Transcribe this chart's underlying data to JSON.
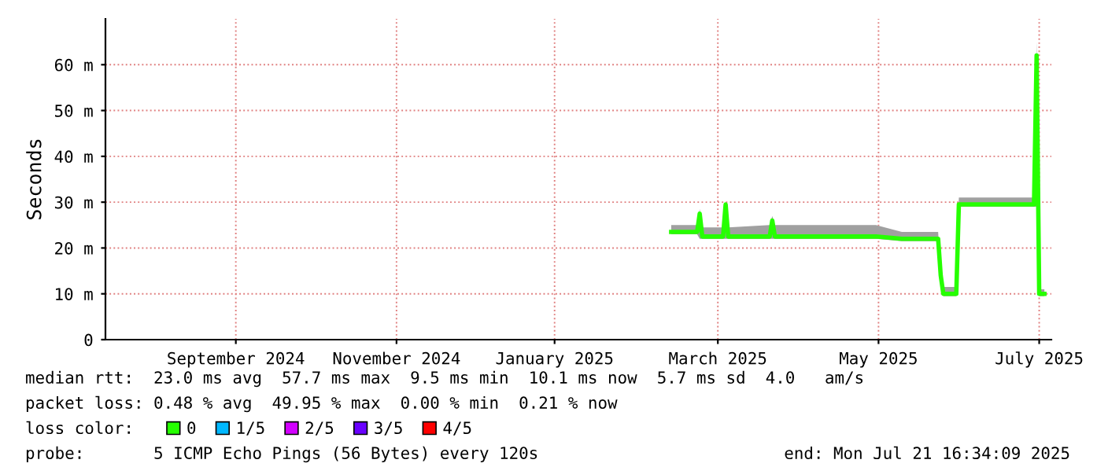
{
  "chart_data": {
    "type": "line",
    "ylabel": "Seconds",
    "legend_title": "loss color:",
    "legend": "bottom",
    "grid": true,
    "marker": "none",
    "line_style": "solid",
    "xlim": [
      "2024-07-21T16:34",
      "2025-07-21T16:34"
    ],
    "xticks": [
      {
        "value": "2024-09-10",
        "label": "September 2024"
      },
      {
        "value": "2024-11-11",
        "label": "November 2024"
      },
      {
        "value": "2025-01-11",
        "label": "January 2025"
      },
      {
        "value": "2025-03-15",
        "label": "March 2025"
      },
      {
        "value": "2025-05-16",
        "label": "May 2025"
      },
      {
        "value": "2025-07-17",
        "label": "July 2025"
      }
    ],
    "ylim": [
      0,
      70
    ],
    "yticks": [
      0,
      {
        "value": 10,
        "label": "10 m"
      },
      {
        "value": 20,
        "label": "20 m"
      },
      {
        "value": 30,
        "label": "30 m"
      },
      {
        "value": 40,
        "label": "40 m"
      },
      {
        "value": 50,
        "label": "50 m"
      },
      {
        "value": 60,
        "label": "60 m"
      }
    ],
    "series": [
      {
        "name": "0",
        "color": "#26ff00",
        "x": [
          "2025-02-25",
          "2025-03-07",
          "2025-03-08",
          "2025-03-09",
          "2025-03-17",
          "2025-03-18",
          "2025-03-19",
          "2025-04-04",
          "2025-04-05",
          "2025-04-06",
          "2025-05-15",
          "2025-05-25",
          "2025-06-08",
          "2025-06-09",
          "2025-06-10",
          "2025-06-15",
          "2025-06-16",
          "2025-07-15",
          "2025-07-16",
          "2025-07-17",
          "2025-07-19"
        ],
        "values": [
          23.5,
          23.5,
          27.5,
          22.5,
          22.5,
          29.5,
          22.5,
          22.5,
          26,
          22.5,
          22.5,
          22,
          22,
          14,
          10,
          10,
          29.5,
          29.5,
          62,
          10,
          10
        ],
        "lower": [
          23,
          23,
          22,
          22,
          22,
          22,
          22,
          22,
          22,
          22,
          22,
          21.5,
          21.5,
          13,
          9.5,
          9.5,
          29,
          29,
          29,
          9.5,
          9.5
        ],
        "upper": [
          25,
          25,
          28.5,
          24.5,
          24.5,
          30,
          24.5,
          25,
          27,
          25,
          25,
          23.5,
          23.5,
          15,
          11.5,
          11.5,
          31,
          31,
          65,
          11,
          11
        ]
      },
      {
        "name": "1/5",
        "color": "#00b8ff"
      },
      {
        "name": "2/5",
        "color": "#d200ff"
      },
      {
        "name": "3/5",
        "color": "#6a00ff"
      },
      {
        "name": "4/5",
        "color": "#ff0000"
      }
    ],
    "annotations": [
      "median rtt:  23.0 ms avg  57.7 ms max  9.5 ms min  10.1 ms now  5.7 ms sd  4.0   am/s",
      "packet loss: 0.48 % avg  49.95 % max  0.00 % min  0.21 % now",
      "probe:       5 ICMP Echo Pings (56 Bytes) every 120s",
      "end: Mon Jul 21 16:34:09 2025"
    ]
  }
}
